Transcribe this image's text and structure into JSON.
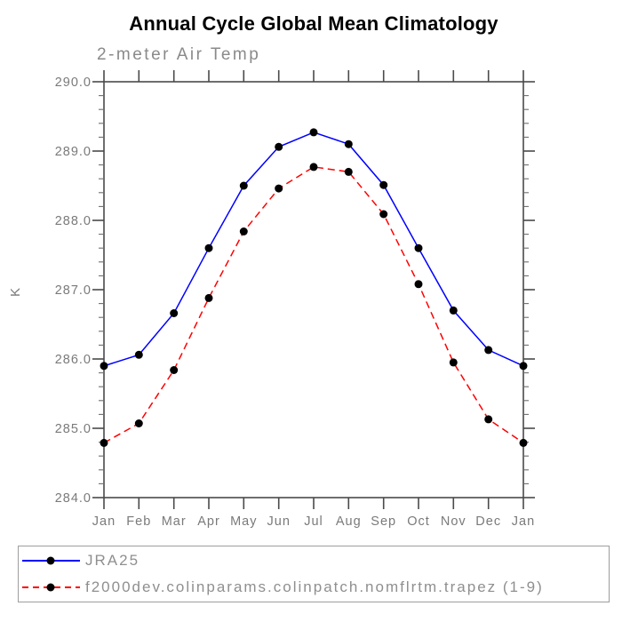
{
  "chart_data": {
    "type": "line",
    "title": "Annual Cycle Global Mean Climatology",
    "subtitle": "2-meter Air Temp",
    "ylabel": "K",
    "categories": [
      "Jan",
      "Feb",
      "Mar",
      "Apr",
      "May",
      "Jun",
      "Jul",
      "Aug",
      "Sep",
      "Oct",
      "Nov",
      "Dec",
      "Jan"
    ],
    "ylim": [
      284.0,
      290.0
    ],
    "y_major_step": 1.0,
    "y_minor_step": 0.2,
    "y_tick_labels": [
      "284.0",
      "285.0",
      "286.0",
      "287.0",
      "288.0",
      "289.0",
      "290.0"
    ],
    "grid": false,
    "legend_position": "bottom-full-width",
    "series": [
      {
        "name": "JRA25",
        "color": "#0000ff",
        "style": "solid",
        "marker": "filled-circle",
        "marker_color": "#000000",
        "values": [
          285.9,
          286.06,
          286.66,
          287.6,
          288.5,
          289.06,
          289.27,
          289.1,
          288.51,
          287.6,
          286.7,
          286.13,
          285.9
        ]
      },
      {
        "name": "f2000dev.colinparams.colinpatch.nomflrtm.trapez (1-9)",
        "color": "#ff0000",
        "style": "dashed",
        "marker": "filled-circle",
        "marker_color": "#000000",
        "values": [
          284.79,
          285.07,
          285.84,
          286.88,
          287.84,
          288.46,
          288.77,
          288.7,
          288.09,
          287.08,
          285.95,
          285.13,
          284.79
        ]
      }
    ],
    "frame_color": "#4a4a4a",
    "axis_text_color": "#7a7a7a"
  }
}
